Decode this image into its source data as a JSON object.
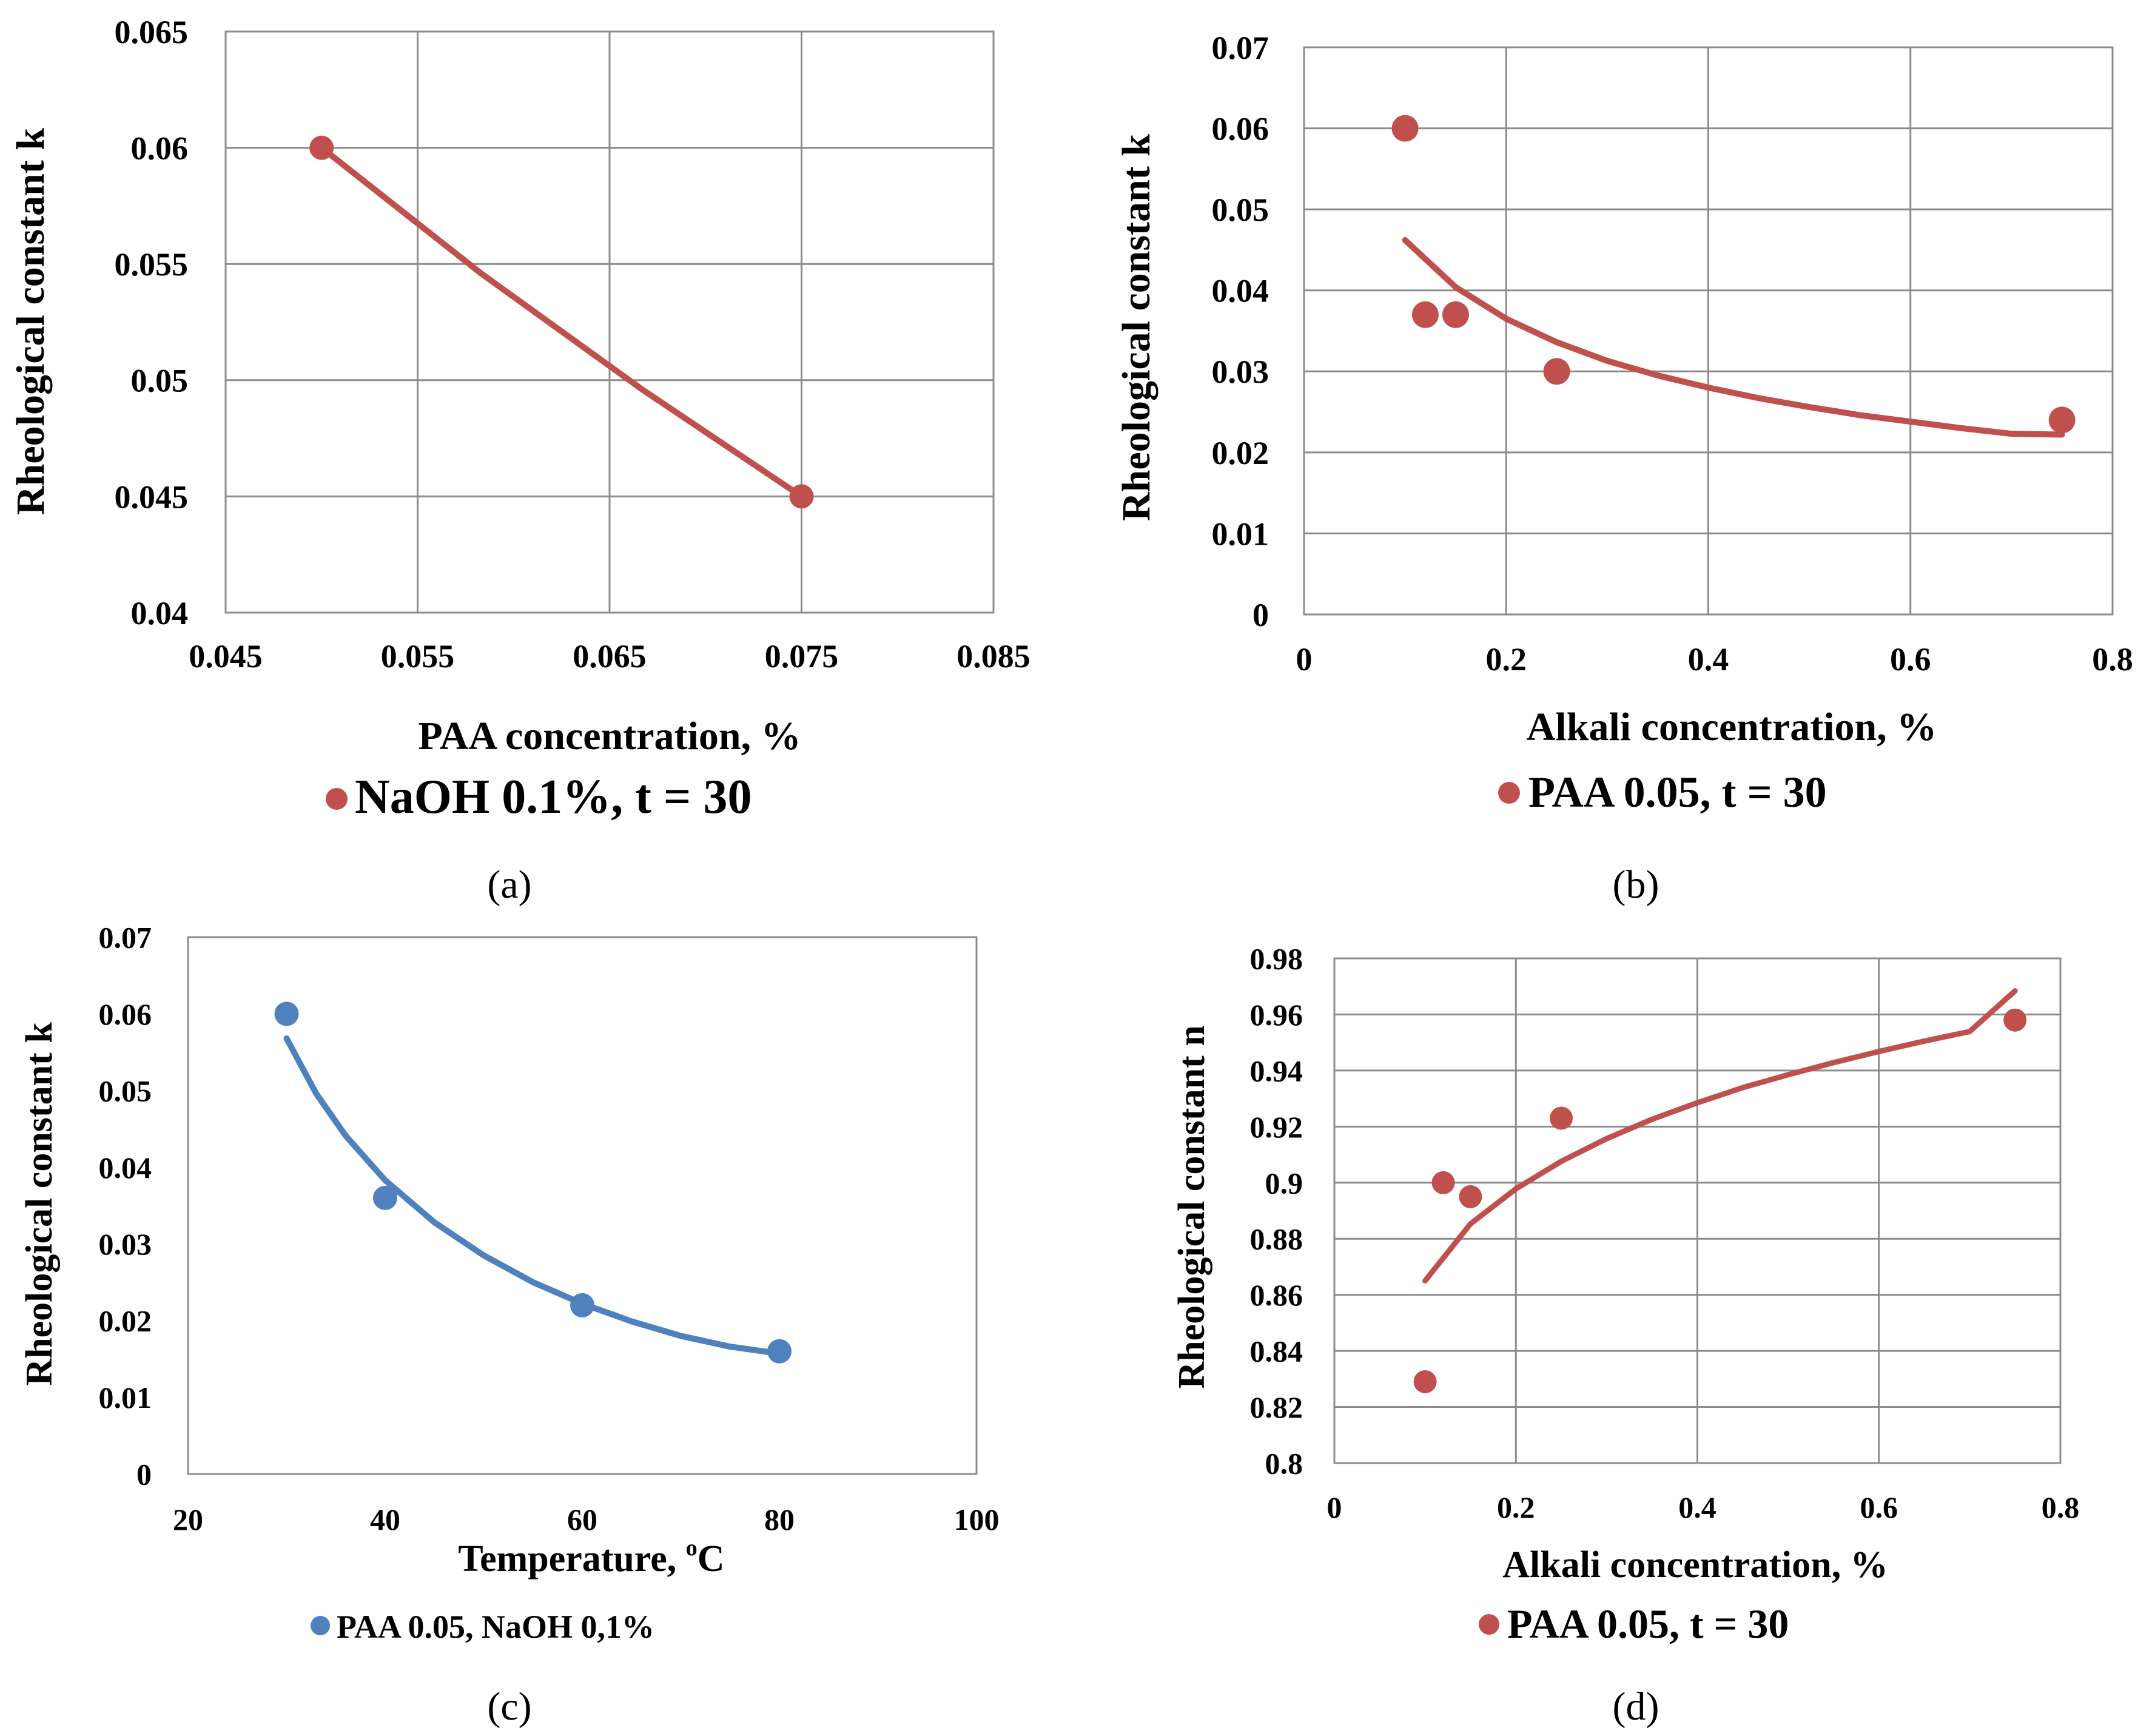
{
  "chart_data": [
    {
      "type": "line",
      "panel_label": "(a)",
      "title": "",
      "xlabel": "PAA concentration, %",
      "ylabel": "Rheological constant k",
      "xlim": [
        0.045,
        0.085
      ],
      "ylim": [
        0.04,
        0.065
      ],
      "xticks": [
        0.045,
        0.055,
        0.065,
        0.075,
        0.085
      ],
      "yticks": [
        0.04,
        0.045,
        0.05,
        0.055,
        0.06,
        0.065
      ],
      "xtick_labels": [
        "0.045",
        "0.055",
        "0.065",
        "0.075",
        "0.085"
      ],
      "ytick_labels": [
        "0.04",
        "0.045",
        "0.05",
        "0.055",
        "0.06",
        "0.065"
      ],
      "grid": true,
      "color": "#c0504d",
      "legend": "NaOH 0.1%, t = 30",
      "series": [
        {
          "name": "NaOH 0.1%, t = 30",
          "x": [
            0.05,
            0.075
          ],
          "y": [
            0.06,
            0.045
          ]
        }
      ],
      "trend": {
        "x": [
          0.05,
          0.0583,
          0.0667,
          0.075
        ],
        "y": [
          0.06,
          0.0546,
          0.0496,
          0.045
        ]
      }
    },
    {
      "type": "scatter",
      "panel_label": "(b)",
      "title": "",
      "xlabel": "Alkali concentration, %",
      "ylabel": "Rheological constant k",
      "xlim": [
        0,
        0.8
      ],
      "ylim": [
        0,
        0.07
      ],
      "xticks": [
        0,
        0.2,
        0.4,
        0.6,
        0.8
      ],
      "yticks": [
        0,
        0.01,
        0.02,
        0.03,
        0.04,
        0.05,
        0.06,
        0.07
      ],
      "xtick_labels": [
        "0",
        "0.2",
        "0.4",
        "0.6",
        "0.8"
      ],
      "ytick_labels": [
        "0",
        "0.01",
        "0.02",
        "0.03",
        "0.04",
        "0.05",
        "0.06",
        "0.07"
      ],
      "grid": true,
      "color": "#c0504d",
      "legend": "PAA 0.05, t = 30",
      "series": [
        {
          "name": "PAA 0.05, t = 30",
          "x": [
            0.1,
            0.12,
            0.15,
            0.25,
            0.75
          ],
          "y": [
            0.06,
            0.037,
            0.037,
            0.03,
            0.024
          ]
        }
      ],
      "trend": {
        "x": [
          0.1,
          0.15,
          0.2,
          0.25,
          0.3,
          0.35,
          0.4,
          0.45,
          0.5,
          0.55,
          0.6,
          0.65,
          0.7,
          0.75
        ],
        "y": [
          0.0462,
          0.0404,
          0.0365,
          0.0336,
          0.0313,
          0.0295,
          0.028,
          0.0267,
          0.0256,
          0.0246,
          0.0238,
          0.023,
          0.0223,
          0.0222
        ]
      }
    },
    {
      "type": "scatter",
      "panel_label": "(c)",
      "title": "",
      "xlabel": "Temperature, ",
      "xlabel_unit": "C",
      "xlabel_sup": "o",
      "ylabel": "Rheological constant k",
      "xlim": [
        20,
        100
      ],
      "ylim": [
        0,
        0.07
      ],
      "xticks": [
        20,
        40,
        60,
        80,
        100
      ],
      "yticks": [
        0,
        0.01,
        0.02,
        0.03,
        0.04,
        0.05,
        0.06,
        0.07
      ],
      "xtick_labels": [
        "20",
        "40",
        "60",
        "80",
        "100"
      ],
      "ytick_labels": [
        "0",
        "0.01",
        "0.02",
        "0.03",
        "0.04",
        "0.05",
        "0.06",
        "0.07"
      ],
      "grid": false,
      "color": "#4f81bd",
      "legend": "PAA 0.05, NaOH 0,1%",
      "series": [
        {
          "name": "PAA 0.05, NaOH 0,1%",
          "x": [
            30,
            40,
            60,
            80
          ],
          "y": [
            0.06,
            0.036,
            0.022,
            0.016
          ]
        }
      ],
      "trend": {
        "x": [
          30,
          33,
          36,
          40,
          45,
          50,
          55,
          60,
          65,
          70,
          75,
          80
        ],
        "y": [
          0.0568,
          0.0496,
          0.0441,
          0.0383,
          0.0328,
          0.0285,
          0.025,
          0.0222,
          0.0199,
          0.018,
          0.0166,
          0.0157
        ]
      }
    },
    {
      "type": "scatter",
      "panel_label": "(d)",
      "title": "",
      "xlabel": "Alkali concentration, %",
      "ylabel": "Rheological constant n",
      "xlim": [
        0,
        0.8
      ],
      "ylim": [
        0.8,
        0.98
      ],
      "xticks": [
        0,
        0.2,
        0.4,
        0.6,
        0.8
      ],
      "yticks": [
        0.8,
        0.82,
        0.84,
        0.86,
        0.88,
        0.9,
        0.92,
        0.94,
        0.96,
        0.98
      ],
      "xtick_labels": [
        "0",
        "0.2",
        "0.4",
        "0.6",
        "0.8"
      ],
      "ytick_labels": [
        "0.8",
        "0.82",
        "0.84",
        "0.86",
        "0.88",
        "0.9",
        "0.92",
        "0.94",
        "0.96",
        "0.98"
      ],
      "grid": true,
      "color": "#c0504d",
      "legend": "PAA 0.05, t = 30",
      "series": [
        {
          "name": "PAA 0.05, t = 30",
          "x": [
            0.1,
            0.12,
            0.15,
            0.25,
            0.75
          ],
          "y": [
            0.829,
            0.9,
            0.895,
            0.923,
            0.958
          ]
        }
      ],
      "trend": {
        "x": [
          0.1,
          0.15,
          0.2,
          0.25,
          0.3,
          0.35,
          0.4,
          0.45,
          0.5,
          0.55,
          0.6,
          0.65,
          0.7,
          0.75
        ],
        "y": [
          0.865,
          0.8853,
          0.8978,
          0.9076,
          0.9157,
          0.9226,
          0.9285,
          0.9339,
          0.9385,
          0.9428,
          0.9468,
          0.9505,
          0.9539,
          0.9684
        ]
      }
    }
  ]
}
